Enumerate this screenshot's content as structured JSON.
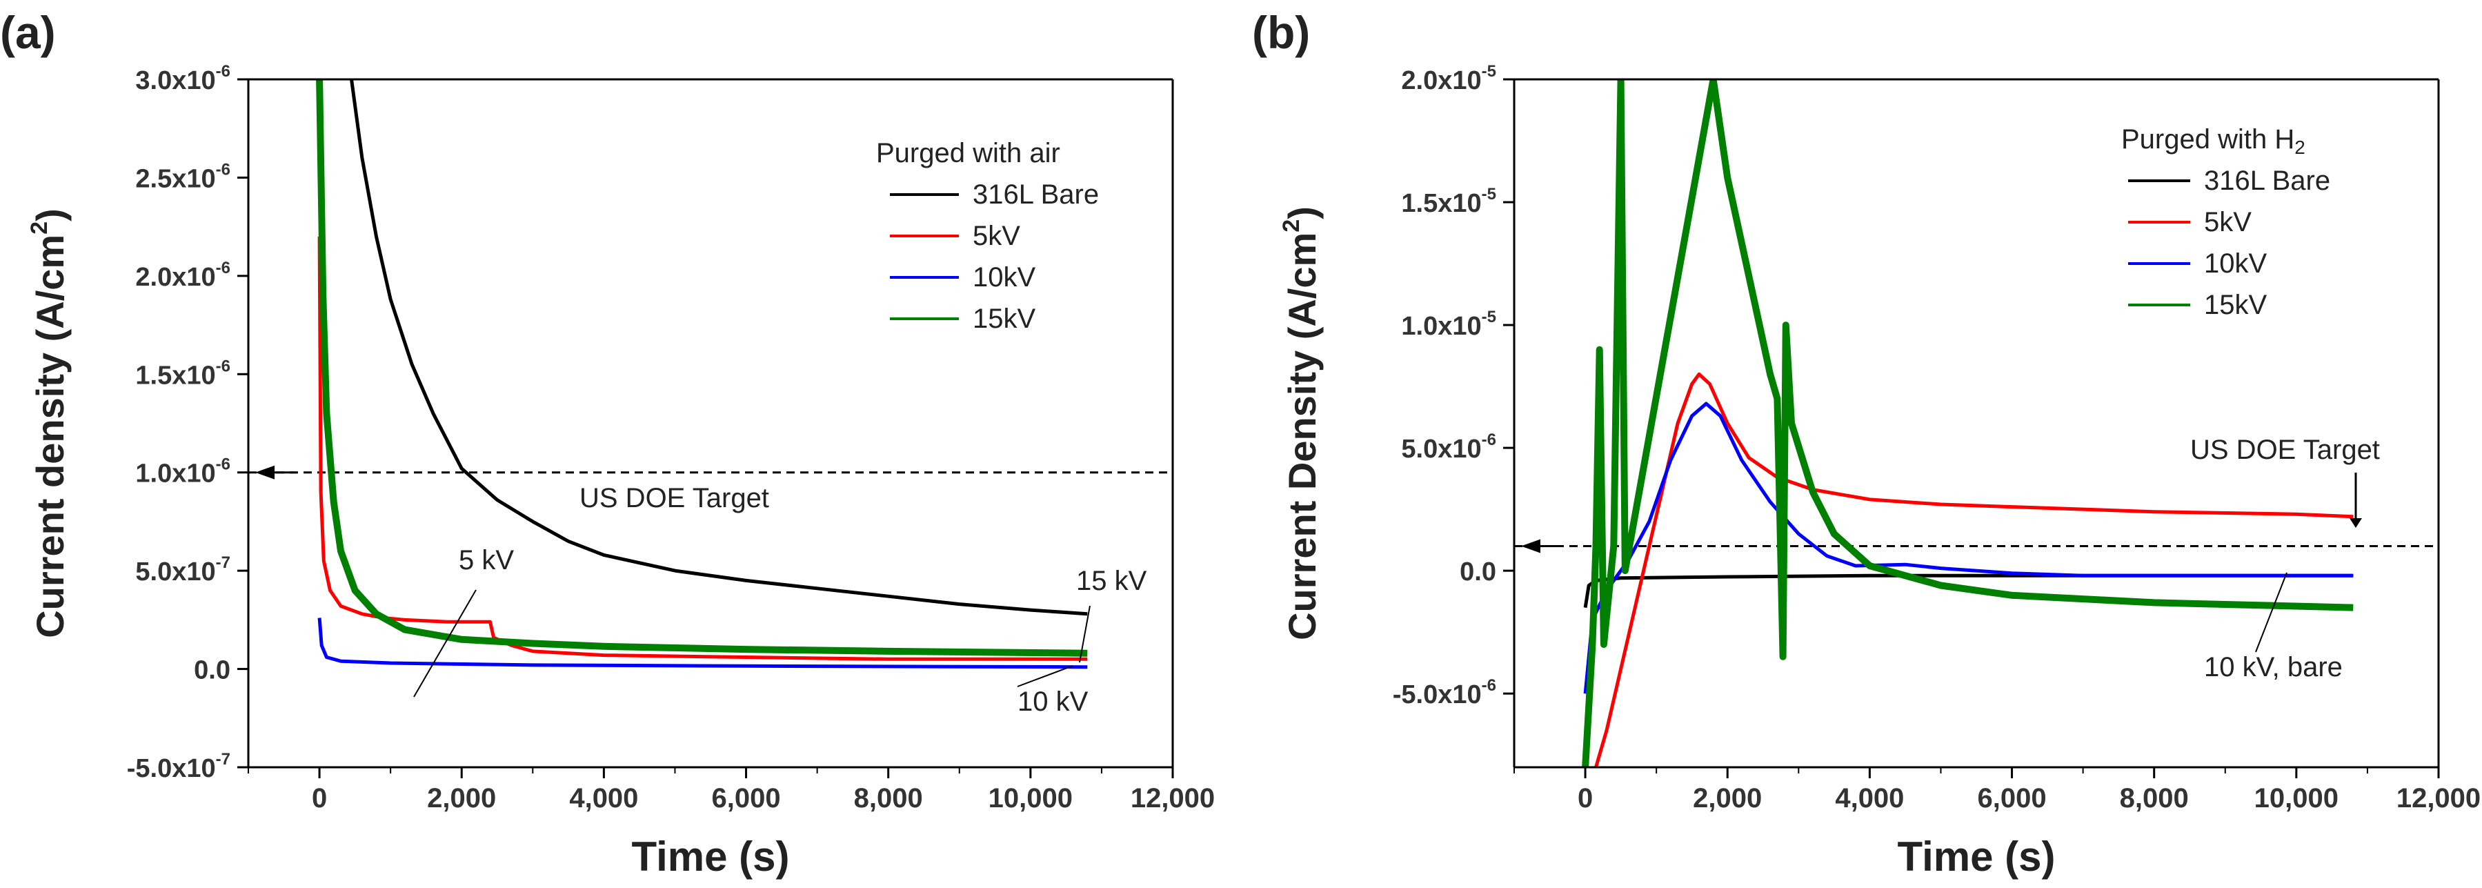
{
  "chart_data": [
    {
      "type": "line",
      "panel_label": "(a)",
      "xlabel": "Time (s)",
      "ylabel": "Current density (A/cm",
      "ylabel_sup": "2",
      "ylabel_close": ")",
      "xlim": [
        -1000,
        12000
      ],
      "ylim": [
        -5e-07,
        3e-06
      ],
      "xticks": [
        0,
        2000,
        4000,
        6000,
        8000,
        10000,
        12000
      ],
      "xtick_labels": [
        "0",
        "2,000",
        "4,000",
        "6,000",
        "8,000",
        "10,000",
        "12,000"
      ],
      "yticks": [
        -5e-07,
        0,
        5e-07,
        1e-06,
        1.5e-06,
        2e-06,
        2.5e-06,
        3e-06
      ],
      "ytick_labels": [
        {
          "mant": "-5.0x10",
          "exp": "-7"
        },
        {
          "mant": "0.0",
          "exp": ""
        },
        {
          "mant": "5.0x10",
          "exp": "-7"
        },
        {
          "mant": "1.0x10",
          "exp": "-6"
        },
        {
          "mant": "1.5x10",
          "exp": "-6"
        },
        {
          "mant": "2.0x10",
          "exp": "-6"
        },
        {
          "mant": "2.5x10",
          "exp": "-6"
        },
        {
          "mant": "3.0x10",
          "exp": "-6"
        }
      ],
      "legend_title": "Purged with air",
      "legend_position": "top-right",
      "series": [
        {
          "name": "316L Bare",
          "color": "#000000",
          "points": [
            [
              450,
              3e-06
            ],
            [
              600,
              2.6e-06
            ],
            [
              800,
              2.2e-06
            ],
            [
              1000,
              1.88e-06
            ],
            [
              1300,
              1.55e-06
            ],
            [
              1600,
              1.3e-06
            ],
            [
              2000,
              1.02e-06
            ],
            [
              2500,
              8.6e-07
            ],
            [
              3000,
              7.5e-07
            ],
            [
              3500,
              6.5e-07
            ],
            [
              4000,
              5.8e-07
            ],
            [
              5000,
              5e-07
            ],
            [
              6000,
              4.5e-07
            ],
            [
              7000,
              4.1e-07
            ],
            [
              8000,
              3.7e-07
            ],
            [
              9000,
              3.3e-07
            ],
            [
              10000,
              3e-07
            ],
            [
              10800,
              2.8e-07
            ]
          ]
        },
        {
          "name": "5kV",
          "color": "#ff0000",
          "points": [
            [
              0,
              2.2e-06
            ],
            [
              20,
              9e-07
            ],
            [
              60,
              5.5e-07
            ],
            [
              150,
              4e-07
            ],
            [
              300,
              3.2e-07
            ],
            [
              600,
              2.8e-07
            ],
            [
              900,
              2.6e-07
            ],
            [
              1200,
              2.5e-07
            ],
            [
              1800,
              2.4e-07
            ],
            [
              2400,
              2.4e-07
            ],
            [
              2450,
              1.6e-07
            ],
            [
              2700,
              1.2e-07
            ],
            [
              3000,
              9e-08
            ],
            [
              4000,
              7e-08
            ],
            [
              6000,
              6e-08
            ],
            [
              8000,
              5e-08
            ],
            [
              10000,
              5e-08
            ],
            [
              10800,
              5e-08
            ]
          ]
        },
        {
          "name": "10kV",
          "color": "#0000ff",
          "points": [
            [
              0,
              2.6e-07
            ],
            [
              30,
              1.2e-07
            ],
            [
              100,
              6e-08
            ],
            [
              300,
              4e-08
            ],
            [
              1000,
              3e-08
            ],
            [
              3000,
              2e-08
            ],
            [
              6000,
              1.5e-08
            ],
            [
              10800,
              1e-08
            ]
          ]
        },
        {
          "name": "15kV",
          "color": "#008000",
          "points": [
            [
              0,
              3e-06
            ],
            [
              50,
              1.9e-06
            ],
            [
              100,
              1.3e-06
            ],
            [
              200,
              8.5e-07
            ],
            [
              300,
              6e-07
            ],
            [
              500,
              4e-07
            ],
            [
              800,
              2.8e-07
            ],
            [
              1200,
              2e-07
            ],
            [
              2000,
              1.5e-07
            ],
            [
              3000,
              1.3e-07
            ],
            [
              4000,
              1.15e-07
            ],
            [
              6000,
              1e-07
            ],
            [
              8000,
              9e-08
            ],
            [
              10800,
              8e-08
            ]
          ]
        }
      ],
      "reference_line": {
        "y": 1e-06,
        "label": "US DOE Target"
      },
      "annotations": [
        "5 kV",
        "15 kV",
        "10 kV"
      ]
    },
    {
      "type": "line",
      "panel_label": "(b)",
      "xlabel": "Time (s)",
      "ylabel": "Current Density (A/cm",
      "ylabel_sup": "2",
      "ylabel_close": ")",
      "xlim": [
        -1000,
        12000
      ],
      "ylim": [
        -8e-06,
        2e-05
      ],
      "xticks": [
        0,
        2000,
        4000,
        6000,
        8000,
        10000,
        12000
      ],
      "xtick_labels": [
        "0",
        "2,000",
        "4,000",
        "6,000",
        "8,000",
        "10,000",
        "12,000"
      ],
      "yticks": [
        -5e-06,
        0,
        5e-06,
        1e-05,
        1.5e-05,
        2e-05
      ],
      "ytick_labels": [
        {
          "mant": "-5.0x10",
          "exp": "-6"
        },
        {
          "mant": "0.0",
          "exp": ""
        },
        {
          "mant": "5.0x10",
          "exp": "-6"
        },
        {
          "mant": "1.0x10",
          "exp": "-5"
        },
        {
          "mant": "1.5x10",
          "exp": "-5"
        },
        {
          "mant": "2.0x10",
          "exp": "-5"
        }
      ],
      "legend_title": "Purged with H",
      "legend_title_sub": "2",
      "legend_position": "top-right",
      "series": [
        {
          "name": "316L Bare",
          "color": "#000000",
          "points": [
            [
              0,
              -1.5e-06
            ],
            [
              50,
              -6e-07
            ],
            [
              150,
              -4e-07
            ],
            [
              500,
              -3e-07
            ],
            [
              2000,
              -2.5e-07
            ],
            [
              4000,
              -2e-07
            ],
            [
              6000,
              -2e-07
            ],
            [
              8000,
              -2e-07
            ],
            [
              10800,
              -2e-07
            ]
          ]
        },
        {
          "name": "5kV",
          "color": "#ff0000",
          "points": [
            [
              150,
              -8e-06
            ],
            [
              300,
              -6.5e-06
            ],
            [
              500,
              -4e-06
            ],
            [
              700,
              -1.5e-06
            ],
            [
              900,
              1e-06
            ],
            [
              1100,
              3.5e-06
            ],
            [
              1300,
              6e-06
            ],
            [
              1500,
              7.6e-06
            ],
            [
              1600,
              8e-06
            ],
            [
              1750,
              7.6e-06
            ],
            [
              2000,
              6e-06
            ],
            [
              2300,
              4.6e-06
            ],
            [
              2700,
              3.8e-06
            ],
            [
              3200,
              3.3e-06
            ],
            [
              4000,
              2.9e-06
            ],
            [
              5000,
              2.7e-06
            ],
            [
              6000,
              2.6e-06
            ],
            [
              8000,
              2.4e-06
            ],
            [
              10000,
              2.3e-06
            ],
            [
              10800,
              2.2e-06
            ]
          ]
        },
        {
          "name": "10kV",
          "color": "#0000ff",
          "points": [
            [
              0,
              -5e-06
            ],
            [
              100,
              -2e-06
            ],
            [
              300,
              -8e-07
            ],
            [
              600,
              4e-07
            ],
            [
              900,
              2e-06
            ],
            [
              1200,
              4.5e-06
            ],
            [
              1500,
              6.3e-06
            ],
            [
              1700,
              6.8e-06
            ],
            [
              1900,
              6.3e-06
            ],
            [
              2200,
              4.5e-06
            ],
            [
              2600,
              2.8e-06
            ],
            [
              3000,
              1.5e-06
            ],
            [
              3400,
              6e-07
            ],
            [
              3800,
              2e-07
            ],
            [
              4500,
              2.5e-07
            ],
            [
              5000,
              1e-07
            ],
            [
              6000,
              -1e-07
            ],
            [
              7000,
              -2e-07
            ],
            [
              10800,
              -2e-07
            ]
          ]
        },
        {
          "name": "15kV",
          "color": "#008000",
          "points": [
            [
              0,
              -8e-06
            ],
            [
              100,
              -3e-06
            ],
            [
              150,
              1e-06
            ],
            [
              200,
              9e-06
            ],
            [
              260,
              -3e-06
            ],
            [
              400,
              1e-06
            ],
            [
              500,
              2e-05
            ],
            [
              560,
              0
            ],
            [
              1800,
              2e-05
            ],
            [
              2000,
              1.6e-05
            ],
            [
              2300,
              1.2e-05
            ],
            [
              2600,
              8e-06
            ],
            [
              2700,
              7e-06
            ],
            [
              2780,
              -3.5e-06
            ],
            [
              2820,
              1e-05
            ],
            [
              2900,
              6e-06
            ],
            [
              3200,
              3.2e-06
            ],
            [
              3500,
              1.5e-06
            ],
            [
              4000,
              2e-07
            ],
            [
              5000,
              -6e-07
            ],
            [
              6000,
              -1e-06
            ],
            [
              8000,
              -1.3e-06
            ],
            [
              10800,
              -1.5e-06
            ]
          ]
        }
      ],
      "reference_line": {
        "y": 1e-06,
        "label": "US DOE Target"
      },
      "annotations": [
        "10 kV, bare"
      ]
    }
  ]
}
